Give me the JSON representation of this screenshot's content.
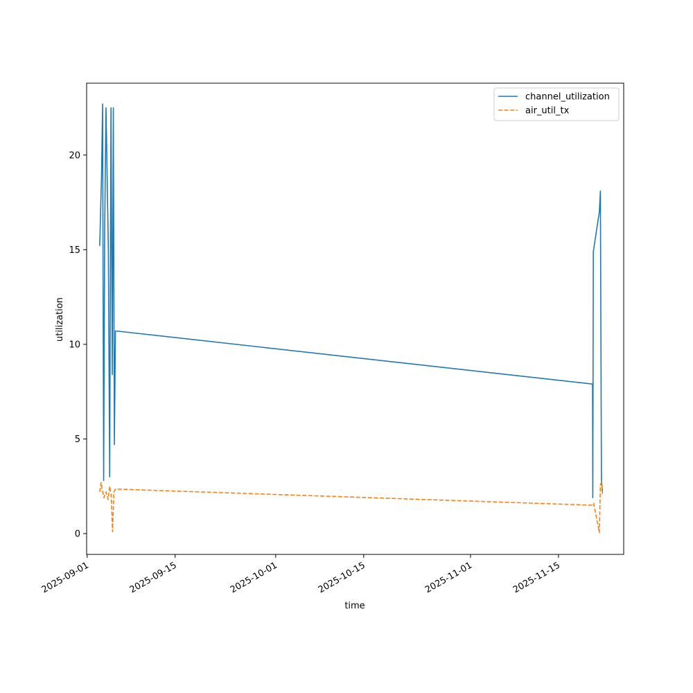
{
  "chart_data": {
    "type": "line",
    "title": "",
    "xlabel": "time",
    "ylabel": "utilization",
    "x_axis_type": "date",
    "xlim": [
      "2025-08-31T22:00",
      "2025-11-25T09:00"
    ],
    "ylim": [
      -1.1,
      23.8
    ],
    "x_ticks": [
      "2025-09-01",
      "2025-09-15",
      "2025-10-01",
      "2025-10-15",
      "2025-11-01",
      "2025-11-15"
    ],
    "y_ticks": [
      0,
      5,
      10,
      15,
      20
    ],
    "grid": false,
    "legend_position": "top-right",
    "series": [
      {
        "name": "channel_utilization",
        "color": "#1f77b4",
        "dash": "solid",
        "points": [
          [
            "2025-09-03T00:00",
            15.2
          ],
          [
            "2025-09-03T07:00",
            19.0
          ],
          [
            "2025-09-03T11:00",
            22.7
          ],
          [
            "2025-09-03T15:00",
            2.8
          ],
          [
            "2025-09-03T19:00",
            16.0
          ],
          [
            "2025-09-04T00:00",
            22.5
          ],
          [
            "2025-09-04T09:00",
            15.0
          ],
          [
            "2025-09-04T14:00",
            3.0
          ],
          [
            "2025-09-04T19:00",
            22.5
          ],
          [
            "2025-09-05T00:00",
            8.4
          ],
          [
            "2025-09-05T04:00",
            22.5
          ],
          [
            "2025-09-05T08:00",
            4.7
          ],
          [
            "2025-09-05T12:00",
            10.7
          ],
          [
            "2025-09-05T18:00",
            10.7
          ],
          [
            "2025-11-20T10:00",
            7.9
          ],
          [
            "2025-11-20T11:00",
            1.9
          ],
          [
            "2025-11-20T13:00",
            14.9
          ],
          [
            "2025-11-21T12:00",
            17.0
          ],
          [
            "2025-11-21T16:00",
            18.1
          ],
          [
            "2025-11-21T20:00",
            2.8
          ],
          [
            "2025-11-22T00:00",
            2.2
          ]
        ]
      },
      {
        "name": "air_util_tx",
        "color": "#ff7f0e",
        "dash": "dashed",
        "points": [
          [
            "2025-09-03T00:00",
            2.2
          ],
          [
            "2025-09-03T05:00",
            2.7
          ],
          [
            "2025-09-03T10:00",
            2.3
          ],
          [
            "2025-09-03T16:00",
            1.9
          ],
          [
            "2025-09-04T00:00",
            2.2
          ],
          [
            "2025-09-04T08:00",
            1.8
          ],
          [
            "2025-09-04T14:00",
            2.5
          ],
          [
            "2025-09-04T20:00",
            2.0
          ],
          [
            "2025-09-05T01:00",
            0.1
          ],
          [
            "2025-09-05T06:00",
            2.2
          ],
          [
            "2025-09-05T12:00",
            2.35
          ],
          [
            "2025-09-05T18:00",
            2.35
          ],
          [
            "2025-11-20T10:00",
            1.5
          ],
          [
            "2025-11-20T14:00",
            1.6
          ],
          [
            "2025-11-21T00:00",
            0.9
          ],
          [
            "2025-11-21T12:00",
            0.05
          ],
          [
            "2025-11-21T16:00",
            2.6
          ],
          [
            "2025-11-21T20:00",
            2.7
          ],
          [
            "2025-11-22T00:00",
            2.1
          ]
        ]
      }
    ]
  }
}
